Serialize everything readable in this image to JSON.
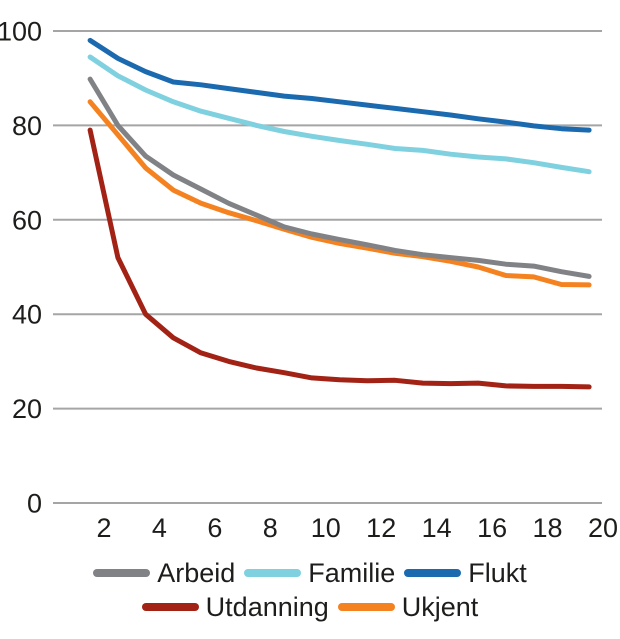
{
  "figure": {
    "background": "#ffffff",
    "text_color": "#1d1d1b",
    "grid_color": "#a5a5a5"
  },
  "chart_data": {
    "type": "line",
    "title": "",
    "xlabel": "",
    "ylabel": "",
    "x": [
      1.5,
      2.5,
      3.5,
      4.5,
      5.5,
      6.5,
      7.5,
      8.5,
      9.5,
      10.5,
      11.5,
      12.5,
      13.5,
      14.5,
      15.5,
      16.5,
      17.5,
      18.5,
      19.5
    ],
    "series": [
      {
        "name": "Arbeid",
        "color": "#808285",
        "values": [
          89.8,
          80,
          73.5,
          69.5,
          66.5,
          63.5,
          61,
          58.5,
          57,
          55.8,
          54.7,
          53.5,
          52.6,
          52,
          51.4,
          50.6,
          50.2,
          49,
          48
        ]
      },
      {
        "name": "Familie",
        "color": "#7fd1e0",
        "values": [
          94.5,
          90.5,
          87.5,
          85,
          83,
          81.5,
          80,
          78.7,
          77.7,
          76.8,
          76,
          75.1,
          74.7,
          73.9,
          73.3,
          72.9,
          72.1,
          71.1,
          70.2
        ]
      },
      {
        "name": "Flukt",
        "color": "#1b6aaf",
        "values": [
          98,
          94.2,
          91.4,
          89.2,
          88.6,
          87.8,
          87,
          86.2,
          85.7,
          85,
          84.3,
          83.6,
          82.9,
          82.2,
          81.4,
          80.7,
          79.9,
          79.3,
          79
        ]
      },
      {
        "name": "Utdanning",
        "color": "#a22315",
        "values": [
          79,
          52,
          40,
          35,
          31.8,
          30,
          28.6,
          27.6,
          26.5,
          26.1,
          25.9,
          26,
          25.4,
          25.3,
          25.4,
          24.8,
          24.7,
          24.7,
          24.6
        ]
      },
      {
        "name": "Ukjent",
        "color": "#f58220",
        "values": [
          85,
          78,
          71,
          66.3,
          63.5,
          61.5,
          59.8,
          58,
          56.3,
          55,
          54,
          52.9,
          52.2,
          51.2,
          50,
          48.2,
          47.9,
          46.3,
          46.2
        ]
      }
    ],
    "x_ticks": [
      2,
      4,
      6,
      8,
      10,
      12,
      14,
      16,
      18,
      20
    ],
    "y_ticks": [
      0,
      20,
      40,
      60,
      80,
      100
    ],
    "xlim": [
      0.2,
      20
    ],
    "ylim": [
      0,
      100
    ],
    "grid": "horizontal",
    "legend_position": "bottom",
    "legend_rows": [
      [
        "Arbeid",
        "Familie",
        "Flukt"
      ],
      [
        "Utdanning",
        "Ukjent"
      ]
    ],
    "draw_order": [
      "Utdanning",
      "Ukjent",
      "Familie",
      "Flukt",
      "Arbeid"
    ]
  }
}
